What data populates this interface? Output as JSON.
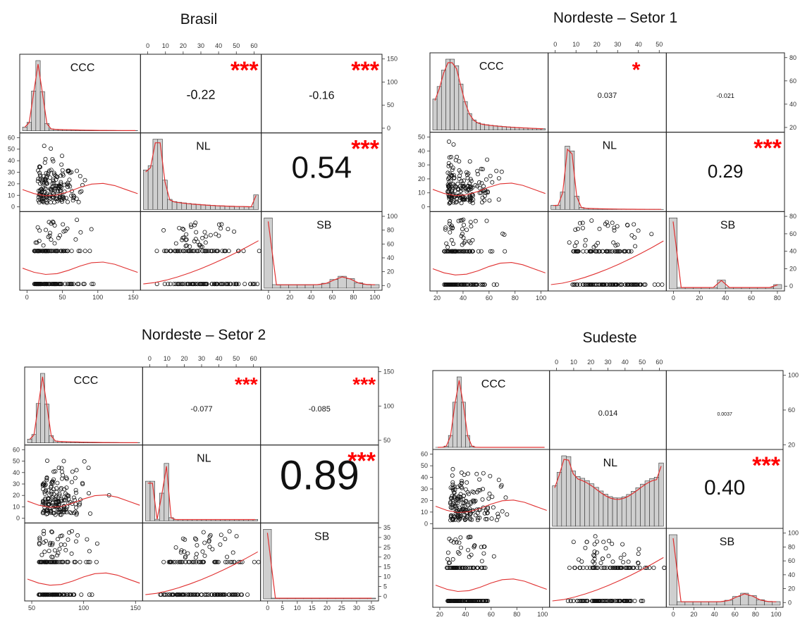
{
  "chart_data": [
    {
      "type": "scatter",
      "title": "Brasil",
      "variables": [
        "CCC",
        "NL",
        "SB"
      ],
      "correlations": [
        {
          "pair": [
            "CCC",
            "NL"
          ],
          "value": "-0.22",
          "significance": "***"
        },
        {
          "pair": [
            "CCC",
            "SB"
          ],
          "value": "-0.16",
          "significance": "***"
        },
        {
          "pair": [
            "NL",
            "SB"
          ],
          "value": "0.54",
          "significance": "***"
        }
      ],
      "axes": {
        "CCC": {
          "range": [
            0,
            180
          ],
          "ticks": [
            "0",
            "50",
            "100",
            "150"
          ]
        },
        "NL": {
          "range": [
            -3,
            66
          ],
          "ticks": [
            "0",
            "10",
            "20",
            "30",
            "40",
            "50",
            "60"
          ]
        },
        "SB": {
          "range": [
            -3,
            103
          ],
          "ticks": [
            "0",
            "20",
            "40",
            "60",
            "80",
            "100"
          ]
        },
        "histogram_count": {
          "range": [
            0,
            165
          ],
          "ticks": [
            "0",
            "50",
            "100",
            "150"
          ]
        }
      }
    },
    {
      "type": "scatter",
      "title": "Nordeste – Setor 1",
      "variables": [
        "CCC",
        "NL",
        "SB"
      ],
      "correlations": [
        {
          "pair": [
            "CCC",
            "NL"
          ],
          "value": "0.037",
          "significance": "*"
        },
        {
          "pair": [
            "CCC",
            "SB"
          ],
          "value": "-0.021",
          "significance": ""
        },
        {
          "pair": [
            "NL",
            "SB"
          ],
          "value": "0.29",
          "significance": "***"
        }
      ],
      "axes": {
        "CCC": {
          "range": [
            5,
            130
          ],
          "ticks": [
            "20",
            "40",
            "60",
            "80",
            "100"
          ]
        },
        "NL": {
          "range": [
            -4,
            54
          ],
          "ticks": [
            "0",
            "10",
            "20",
            "30",
            "40",
            "50"
          ]
        },
        "SB": {
          "range": [
            -3,
            96
          ],
          "ticks": [
            "0",
            "20",
            "40",
            "60",
            "80"
          ]
        },
        "histogram_count": {
          "range": [
            0,
            90
          ],
          "ticks": [
            "20",
            "40",
            "60",
            "80"
          ]
        }
      }
    },
    {
      "type": "scatter",
      "title": "Nordeste – Setor 2",
      "variables": [
        "CCC",
        "NL",
        "SB"
      ],
      "correlations": [
        {
          "pair": [
            "CCC",
            "NL"
          ],
          "value": "-0.077",
          "significance": "***"
        },
        {
          "pair": [
            "CCC",
            "SB"
          ],
          "value": "-0.085",
          "significance": "***"
        },
        {
          "pair": [
            "NL",
            "SB"
          ],
          "value": "0.89",
          "significance": "***"
        }
      ],
      "axes": {
        "CCC": {
          "range": [
            0,
            180
          ],
          "ticks": [
            "50",
            "100",
            "150"
          ]
        },
        "NL": {
          "range": [
            -3,
            66
          ],
          "ticks": [
            "0",
            "10",
            "20",
            "30",
            "40",
            "50",
            "60"
          ]
        },
        "SB": {
          "range": [
            -1,
            36
          ],
          "ticks": [
            "0",
            "5",
            "10",
            "15",
            "20",
            "25",
            "30",
            "35"
          ]
        },
        "histogram_count": {
          "range": [
            0,
            170
          ],
          "ticks": [
            "50",
            "100",
            "150"
          ]
        }
      }
    },
    {
      "type": "scatter",
      "title": "Sudeste",
      "variables": [
        "CCC",
        "NL",
        "SB"
      ],
      "correlations": [
        {
          "pair": [
            "CCC",
            "NL"
          ],
          "value": "0.014",
          "significance": ""
        },
        {
          "pair": [
            "CCC",
            "SB"
          ],
          "value": "0.0037",
          "significance": ""
        },
        {
          "pair": [
            "NL",
            "SB"
          ],
          "value": "0.40",
          "significance": "***"
        }
      ],
      "axes": {
        "CCC": {
          "range": [
            0,
            125
          ],
          "ticks": [
            "20",
            "40",
            "60",
            "80",
            "100"
          ]
        },
        "NL": {
          "range": [
            -4,
            66
          ],
          "ticks": [
            "0",
            "10",
            "20",
            "30",
            "40",
            "50",
            "60"
          ]
        },
        "SB": {
          "range": [
            -3,
            103
          ],
          "ticks": [
            "0",
            "20",
            "40",
            "60",
            "80",
            "100"
          ]
        },
        "histogram_count": {
          "range": [
            0,
            115
          ],
          "ticks": [
            "20",
            "60",
            "100"
          ]
        }
      }
    }
  ]
}
